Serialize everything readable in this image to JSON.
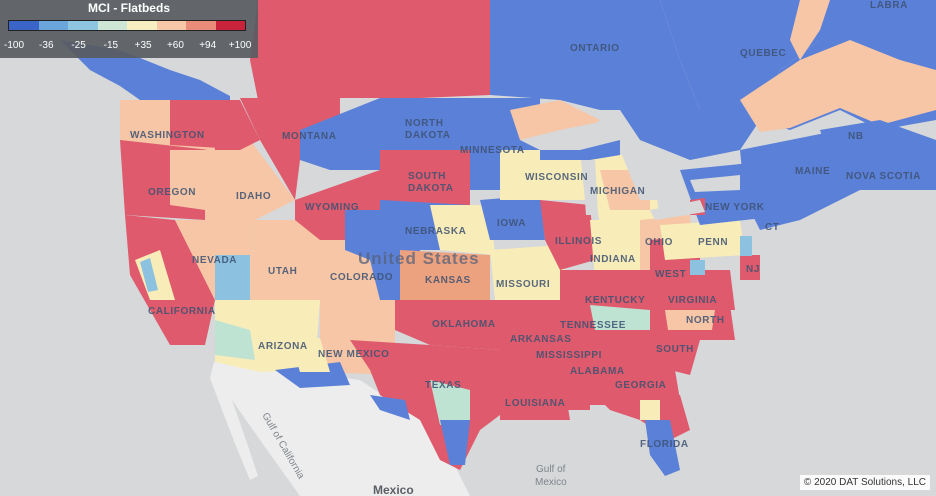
{
  "legend": {
    "title": "MCI - Flatbeds",
    "ticks": [
      "-100",
      "-36",
      "-25",
      "-15",
      "+35",
      "+60",
      "+94",
      "+100"
    ],
    "colors": [
      "#3a64c8",
      "#6aa5dc",
      "#8ec6e2",
      "#cde6d6",
      "#f6efc2",
      "#f7c8a8",
      "#e98d7a",
      "#c9233b"
    ]
  },
  "palette": {
    "blue": "#5b80d8",
    "lightblue": "#8cc2e0",
    "mint": "#bfe3d3",
    "cream": "#f8ecb8",
    "peach": "#f6c6a6",
    "salmon": "#eca17f",
    "red": "#de5a6c",
    "water": "#d6d8da",
    "land": "#ededed"
  },
  "labels": {
    "ontario": "ONTARIO",
    "quebec": "QUEBEC",
    "labrador": "LABRA",
    "washington": "WASHINGTON",
    "montana": "MONTANA",
    "north_dakota_1": "NORTH",
    "north_dakota_2": "DAKOTA",
    "minnesota": "MINNESOTA",
    "south_dakota_1": "SOUTH",
    "south_dakota_2": "DAKOTA",
    "oregon": "OREGON",
    "idaho": "IDAHO",
    "wyoming": "WYOMING",
    "wisconsin": "WISCONSIN",
    "michigan": "MICHIGAN",
    "iowa": "IOWA",
    "nebraska": "NEBRASKA",
    "nevada": "NEVADA",
    "utah": "UTAH",
    "colorado": "COLORADO",
    "united_states": "United States",
    "kansas": "KANSAS",
    "missouri": "MISSOURI",
    "illinois": "ILLINOIS",
    "indiana": "INDIANA",
    "ohio": "OHIO",
    "california": "CALIFORNIA",
    "kentucky": "KENTUCKY",
    "tennessee": "TENNESSEE",
    "arizona": "ARIZONA",
    "new_mexico": "NEW MEXICO",
    "oklahoma": "OKLAHOMA",
    "arkansas": "ARKANSAS",
    "mississippi": "MISSISSIPPI",
    "alabama": "ALABAMA",
    "georgia": "GEORGIA",
    "texas": "TEXAS",
    "louisiana": "LOUISIANA",
    "florida": "FLORIDA",
    "west_virginia": "WEST",
    "virginia": "VIRGINIA",
    "north_carolina": "NORTH",
    "south_carolina": "SOUTH",
    "pennsylvania": "PENN",
    "new_york": "NEW YORK",
    "new_jersey": "NJ",
    "maine": "MAINE",
    "new_brunswick": "NB",
    "nova_scotia": "NOVA SCOTIA",
    "ct": "CT",
    "gulf_california": "Gulf of California",
    "gulf_mexico_1": "Gulf of",
    "gulf_mexico_2": "Mexico",
    "mexico": "Mexico"
  },
  "credit": "© 2020 DAT Solutions, LLC"
}
